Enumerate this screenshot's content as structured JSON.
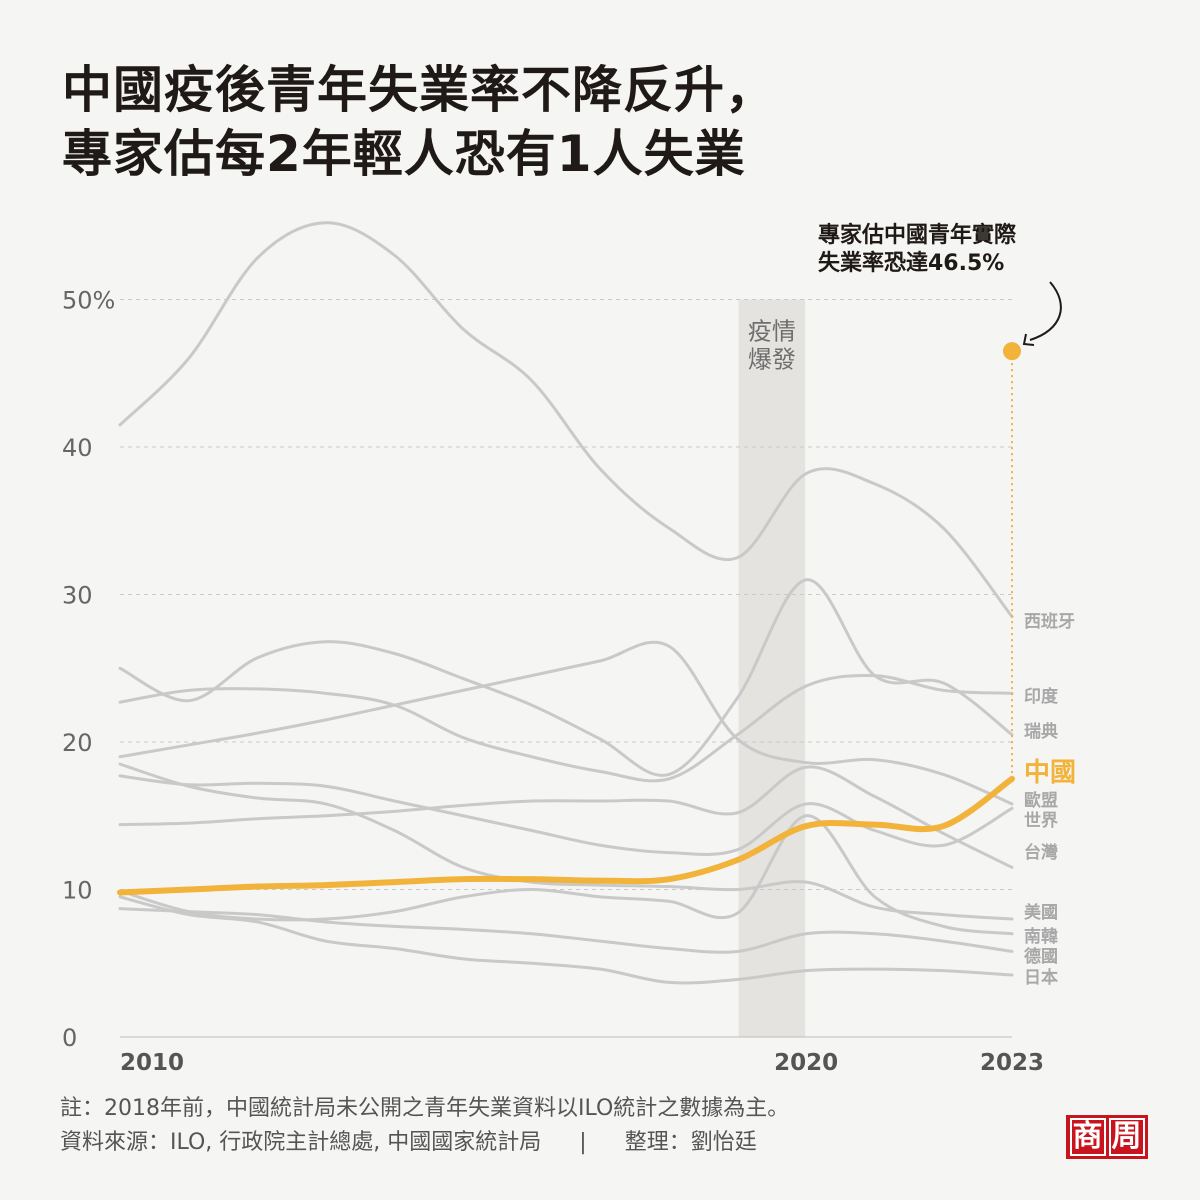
{
  "title_lines": [
    "中國疫後青年失業率不降反升，",
    "專家估每2年輕人恐有1人失業"
  ],
  "chart_data": {
    "type": "line",
    "y_ticks": [
      "50%",
      "40",
      "30",
      "20",
      "10",
      "0"
    ],
    "y_tick_values": [
      50,
      40,
      30,
      20,
      10,
      0
    ],
    "x_ticks": [
      "2010",
      "2020",
      "2023"
    ],
    "x_tick_values": [
      2010,
      2020,
      2023
    ],
    "xlim": [
      2010,
      2023.2
    ],
    "ylim": [
      0,
      55
    ],
    "grid": "dashed horizontal",
    "band": {
      "label_lines": [
        "疫情",
        "爆發"
      ],
      "x_range": [
        2019,
        2020
      ]
    },
    "highlight_color": "#f2b33a",
    "other_color": "#c9c9c9",
    "x": [
      2010,
      2011,
      2012,
      2013,
      2014,
      2015,
      2016,
      2017,
      2018,
      2019,
      2020,
      2021,
      2022,
      2023
    ],
    "series": [
      {
        "name": "西班牙",
        "values": [
          41.5,
          46.0,
          52.8,
          55.2,
          53.0,
          48.0,
          44.5,
          38.5,
          34.5,
          32.5,
          38.2,
          37.5,
          34.5,
          28.5
        ]
      },
      {
        "name": "印度",
        "values": [
          22.7,
          23.5,
          23.6,
          23.3,
          22.5,
          20.3,
          19.0,
          18.0,
          17.5,
          20.5,
          23.8,
          24.5,
          23.5,
          23.3
        ]
      },
      {
        "name": "瑞典",
        "values": [
          25.0,
          22.8,
          25.7,
          26.8,
          26.0,
          24.3,
          22.5,
          20.2,
          17.8,
          23.0,
          31.0,
          24.5,
          24.0,
          20.5
        ]
      },
      {
        "name": "中國",
        "highlight": true,
        "values": [
          9.8,
          10.0,
          10.2,
          10.3,
          10.5,
          10.7,
          10.7,
          10.6,
          10.7,
          12.0,
          14.3,
          14.4,
          14.3,
          17.5
        ]
      },
      {
        "name": "歐盟",
        "values": [
          19.0,
          19.8,
          20.6,
          21.5,
          22.5,
          23.5,
          24.5,
          25.5,
          26.5,
          20.2,
          18.6,
          18.8,
          17.8,
          15.8
        ]
      },
      {
        "name": "世界",
        "values": [
          17.7,
          17.1,
          17.2,
          17.0,
          16.0,
          15.0,
          14.0,
          13.0,
          12.5,
          12.7,
          15.8,
          14.0,
          13.0,
          15.5
        ]
      },
      {
        "name": "台灣",
        "values": [
          14.4,
          14.5,
          14.8,
          15.0,
          15.3,
          15.7,
          16.0,
          16.0,
          16.0,
          15.2,
          18.3,
          16.3,
          13.8,
          11.5
        ]
      },
      {
        "name": "美國",
        "values": [
          18.5,
          17.0,
          16.2,
          15.8,
          14.0,
          11.5,
          10.5,
          10.3,
          10.2,
          10.0,
          10.5,
          8.8,
          8.3,
          8.0
        ]
      },
      {
        "name": "南韓",
        "values": [
          9.9,
          8.5,
          8.0,
          8.0,
          8.5,
          9.5,
          10.0,
          9.5,
          9.2,
          8.4,
          15.0,
          9.5,
          7.5,
          7.0
        ]
      },
      {
        "name": "德國",
        "values": [
          8.7,
          8.5,
          8.3,
          7.8,
          7.5,
          7.3,
          7.0,
          6.5,
          6.0,
          5.8,
          7.0,
          7.0,
          6.5,
          5.8
        ]
      },
      {
        "name": "日本",
        "values": [
          9.5,
          8.3,
          7.8,
          6.5,
          6.0,
          5.3,
          5.0,
          4.6,
          3.7,
          3.9,
          4.5,
          4.6,
          4.5,
          4.2
        ]
      }
    ],
    "estimate": {
      "x": 2023,
      "value": 46.5,
      "label_lines": [
        "專家估中國青年實際",
        "失業率恐達46.5%"
      ]
    }
  },
  "notes": {
    "note": "註：2018年前，中國統計局未公開之青年失業資料以ILO統計之數據為主。",
    "source": "資料來源：ILO, 行政院主計總處, 中國國家統計局",
    "separator": "|",
    "editor": "整理：劉怡廷"
  },
  "logo": {
    "chars": [
      "商",
      "周"
    ],
    "color": "#c8141c"
  }
}
